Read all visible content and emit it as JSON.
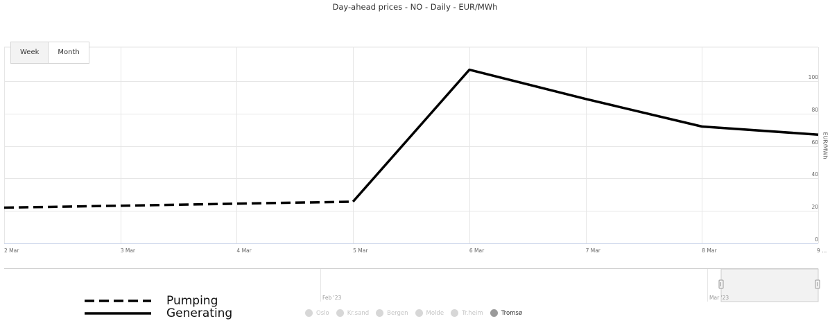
{
  "title": "Day-ahead prices - NO - Daily - EUR/MWh",
  "range_buttons": [
    {
      "label": "Week",
      "active": true
    },
    {
      "label": "Month",
      "active": false
    }
  ],
  "y_axis": {
    "title": "EUR/MWh",
    "ticks": [
      "0",
      "20",
      "40",
      "60",
      "80",
      "100"
    ]
  },
  "x_axis": {
    "ticks": [
      "2 Mar",
      "3 Mar",
      "4 Mar",
      "5 Mar",
      "6 Mar",
      "7 Mar",
      "8 Mar",
      "9 ..."
    ]
  },
  "navigator": {
    "labels": [
      "Feb '23",
      "Mar '23"
    ]
  },
  "legend": [
    {
      "label": "Pumping",
      "style": "dashed"
    },
    {
      "label": "Generating",
      "style": "solid"
    }
  ],
  "regions": [
    {
      "label": "Oslo",
      "active": false
    },
    {
      "label": "Kr.sand",
      "active": false
    },
    {
      "label": "Bergen",
      "active": false
    },
    {
      "label": "Molde",
      "active": false
    },
    {
      "label": "Tr.heim",
      "active": false
    },
    {
      "label": "Tromsø",
      "active": true
    }
  ],
  "chart_data": {
    "type": "line",
    "title": "Day-ahead prices - NO - Daily - EUR/MWh",
    "ylabel": "EUR/MWh",
    "xlabel": "",
    "x": [
      "2 Mar",
      "3 Mar",
      "4 Mar",
      "5 Mar",
      "6 Mar",
      "7 Mar",
      "8 Mar",
      "9 Mar"
    ],
    "ylim": [
      0,
      110
    ],
    "grid": true,
    "series": [
      {
        "name": "Pumping",
        "style": "dashed",
        "color": "#000000",
        "x": [
          "2 Mar",
          "3 Mar",
          "4 Mar",
          "5 Mar"
        ],
        "values": [
          22,
          23.2,
          24.5,
          25.7
        ]
      },
      {
        "name": "Generating",
        "style": "solid",
        "color": "#000000",
        "x": [
          "5 Mar",
          "6 Mar",
          "7 Mar",
          "8 Mar",
          "9 Mar"
        ],
        "values": [
          25.7,
          107,
          89,
          72,
          67
        ]
      }
    ]
  }
}
